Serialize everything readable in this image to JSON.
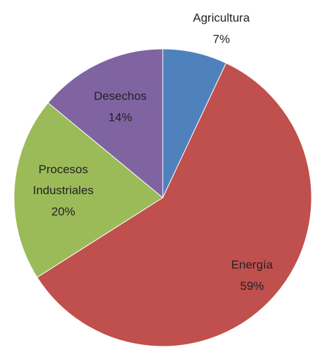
{
  "chart_data": {
    "type": "pie",
    "categories": [
      "Agricultura",
      "Energía",
      "Procesos Industriales",
      "Desechos"
    ],
    "values": [
      7,
      59,
      20,
      14
    ],
    "value_labels": [
      "7%",
      "59%",
      "20%",
      "14%"
    ],
    "colors": [
      "#4f81bd",
      "#c0504d",
      "#9bbb59",
      "#8064a2"
    ]
  }
}
